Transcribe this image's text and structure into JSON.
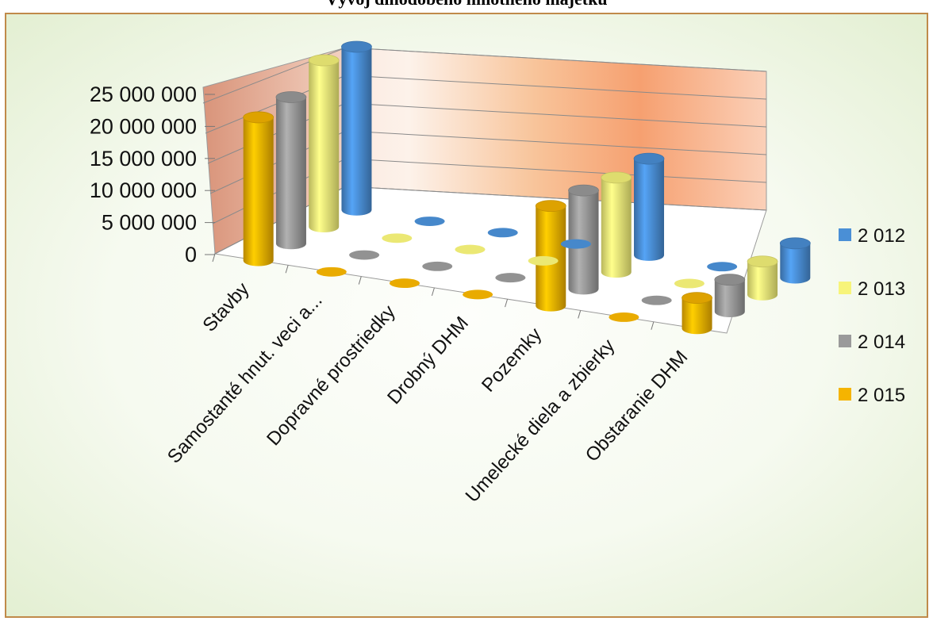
{
  "chart_data": {
    "type": "bar",
    "style": "3d-cylinder",
    "title": "Vývoj dlhodobého hmotného majetku",
    "categories": [
      "Stavby",
      "Samostanté hnut. veci a...",
      "Dopravné prostriedky",
      "Drobný DHM",
      "Pozemky",
      "Umelecké diela a zbierky",
      "Obstaranie DHM"
    ],
    "series": [
      {
        "name": "2 012",
        "color": "#4a8fd6",
        "values": [
          24500000,
          0,
          0,
          0,
          14500000,
          0,
          5200000
        ]
      },
      {
        "name": "2 013",
        "color": "#f7f47a",
        "values": [
          25000000,
          0,
          0,
          0,
          14200000,
          0,
          5000000
        ]
      },
      {
        "name": "2 014",
        "color": "#9a9a9a",
        "values": [
          22000000,
          0,
          0,
          0,
          14800000,
          0,
          4800000
        ]
      },
      {
        "name": "2 015",
        "color": "#f5b400",
        "values": [
          21500000,
          0,
          0,
          0,
          15000000,
          0,
          4600000
        ]
      }
    ],
    "y_ticks": [
      "25 000 000",
      "20 000 000",
      "15 000 000",
      "10 000 000",
      "5 000 000",
      "0"
    ],
    "ylim": [
      0,
      25000000
    ],
    "grid": true,
    "legend_position": "right"
  }
}
